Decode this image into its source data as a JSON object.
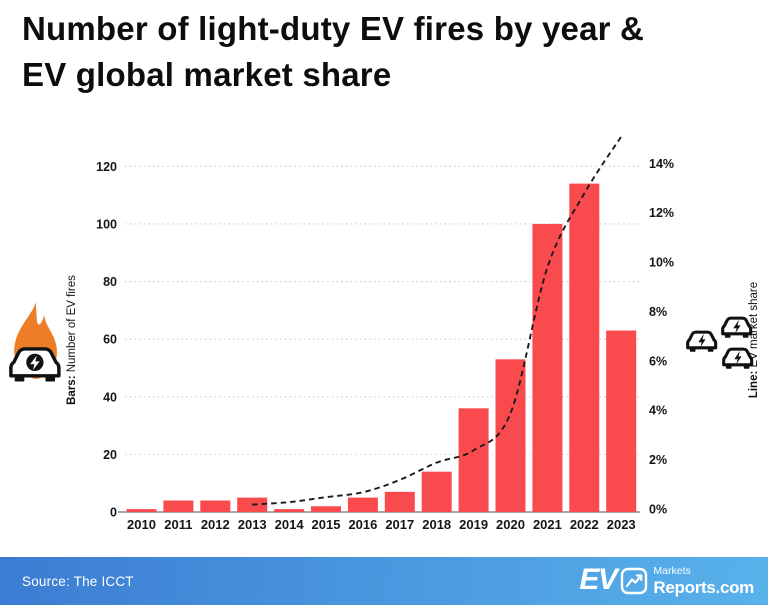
{
  "title": {
    "line1": "Number of light-duty EV fires by year &",
    "line2": "EV global market share"
  },
  "chart_data": {
    "type": "bar+line combo",
    "categories": [
      "2010",
      "2011",
      "2012",
      "2013",
      "2014",
      "2015",
      "2016",
      "2017",
      "2018",
      "2019",
      "2020",
      "2021",
      "2022",
      "2023"
    ],
    "series": [
      {
        "name": "Number of EV fires",
        "type": "bar",
        "color": "#f94b4e",
        "values": [
          1,
          4,
          4,
          5,
          1,
          2,
          5,
          7,
          14,
          36,
          53,
          100,
          114,
          63
        ]
      },
      {
        "name": "EV market share",
        "type": "line",
        "style": "dashed",
        "color": "#1a1a1a",
        "values": [
          null,
          null,
          null,
          0.3,
          0.4,
          0.6,
          0.8,
          1.3,
          2.0,
          2.5,
          4.0,
          9.9,
          12.9,
          15.2
        ]
      }
    ],
    "left_axis": {
      "label_prefix": "Bars:",
      "label_rest": " Number of EV fires",
      "min": 0,
      "max": 120,
      "step": 20,
      "ticks": [
        "0",
        "20",
        "40",
        "60",
        "80",
        "100",
        "120"
      ]
    },
    "right_axis": {
      "label_prefix": "Line:",
      "label_rest": " EV market share",
      "min": 0,
      "max": 14,
      "step": 2,
      "unit": "%",
      "ticks": [
        "0%",
        "2%",
        "4%",
        "6%",
        "8%",
        "10%",
        "12%",
        "14%"
      ]
    },
    "grid": "dotted horizontal gridlines, legend off"
  },
  "icons": {
    "left": "burning-ev-car-icon",
    "right": "three-electric-cars-icon",
    "flame_color": "#ee7d27"
  },
  "footer": {
    "source": "Source: The ICCT",
    "gradient_left": "#3c7cd3",
    "gradient_right": "#58b2ea",
    "logo": {
      "ev": "EV",
      "markets": "Markets",
      "reports": "Reports.com"
    }
  }
}
